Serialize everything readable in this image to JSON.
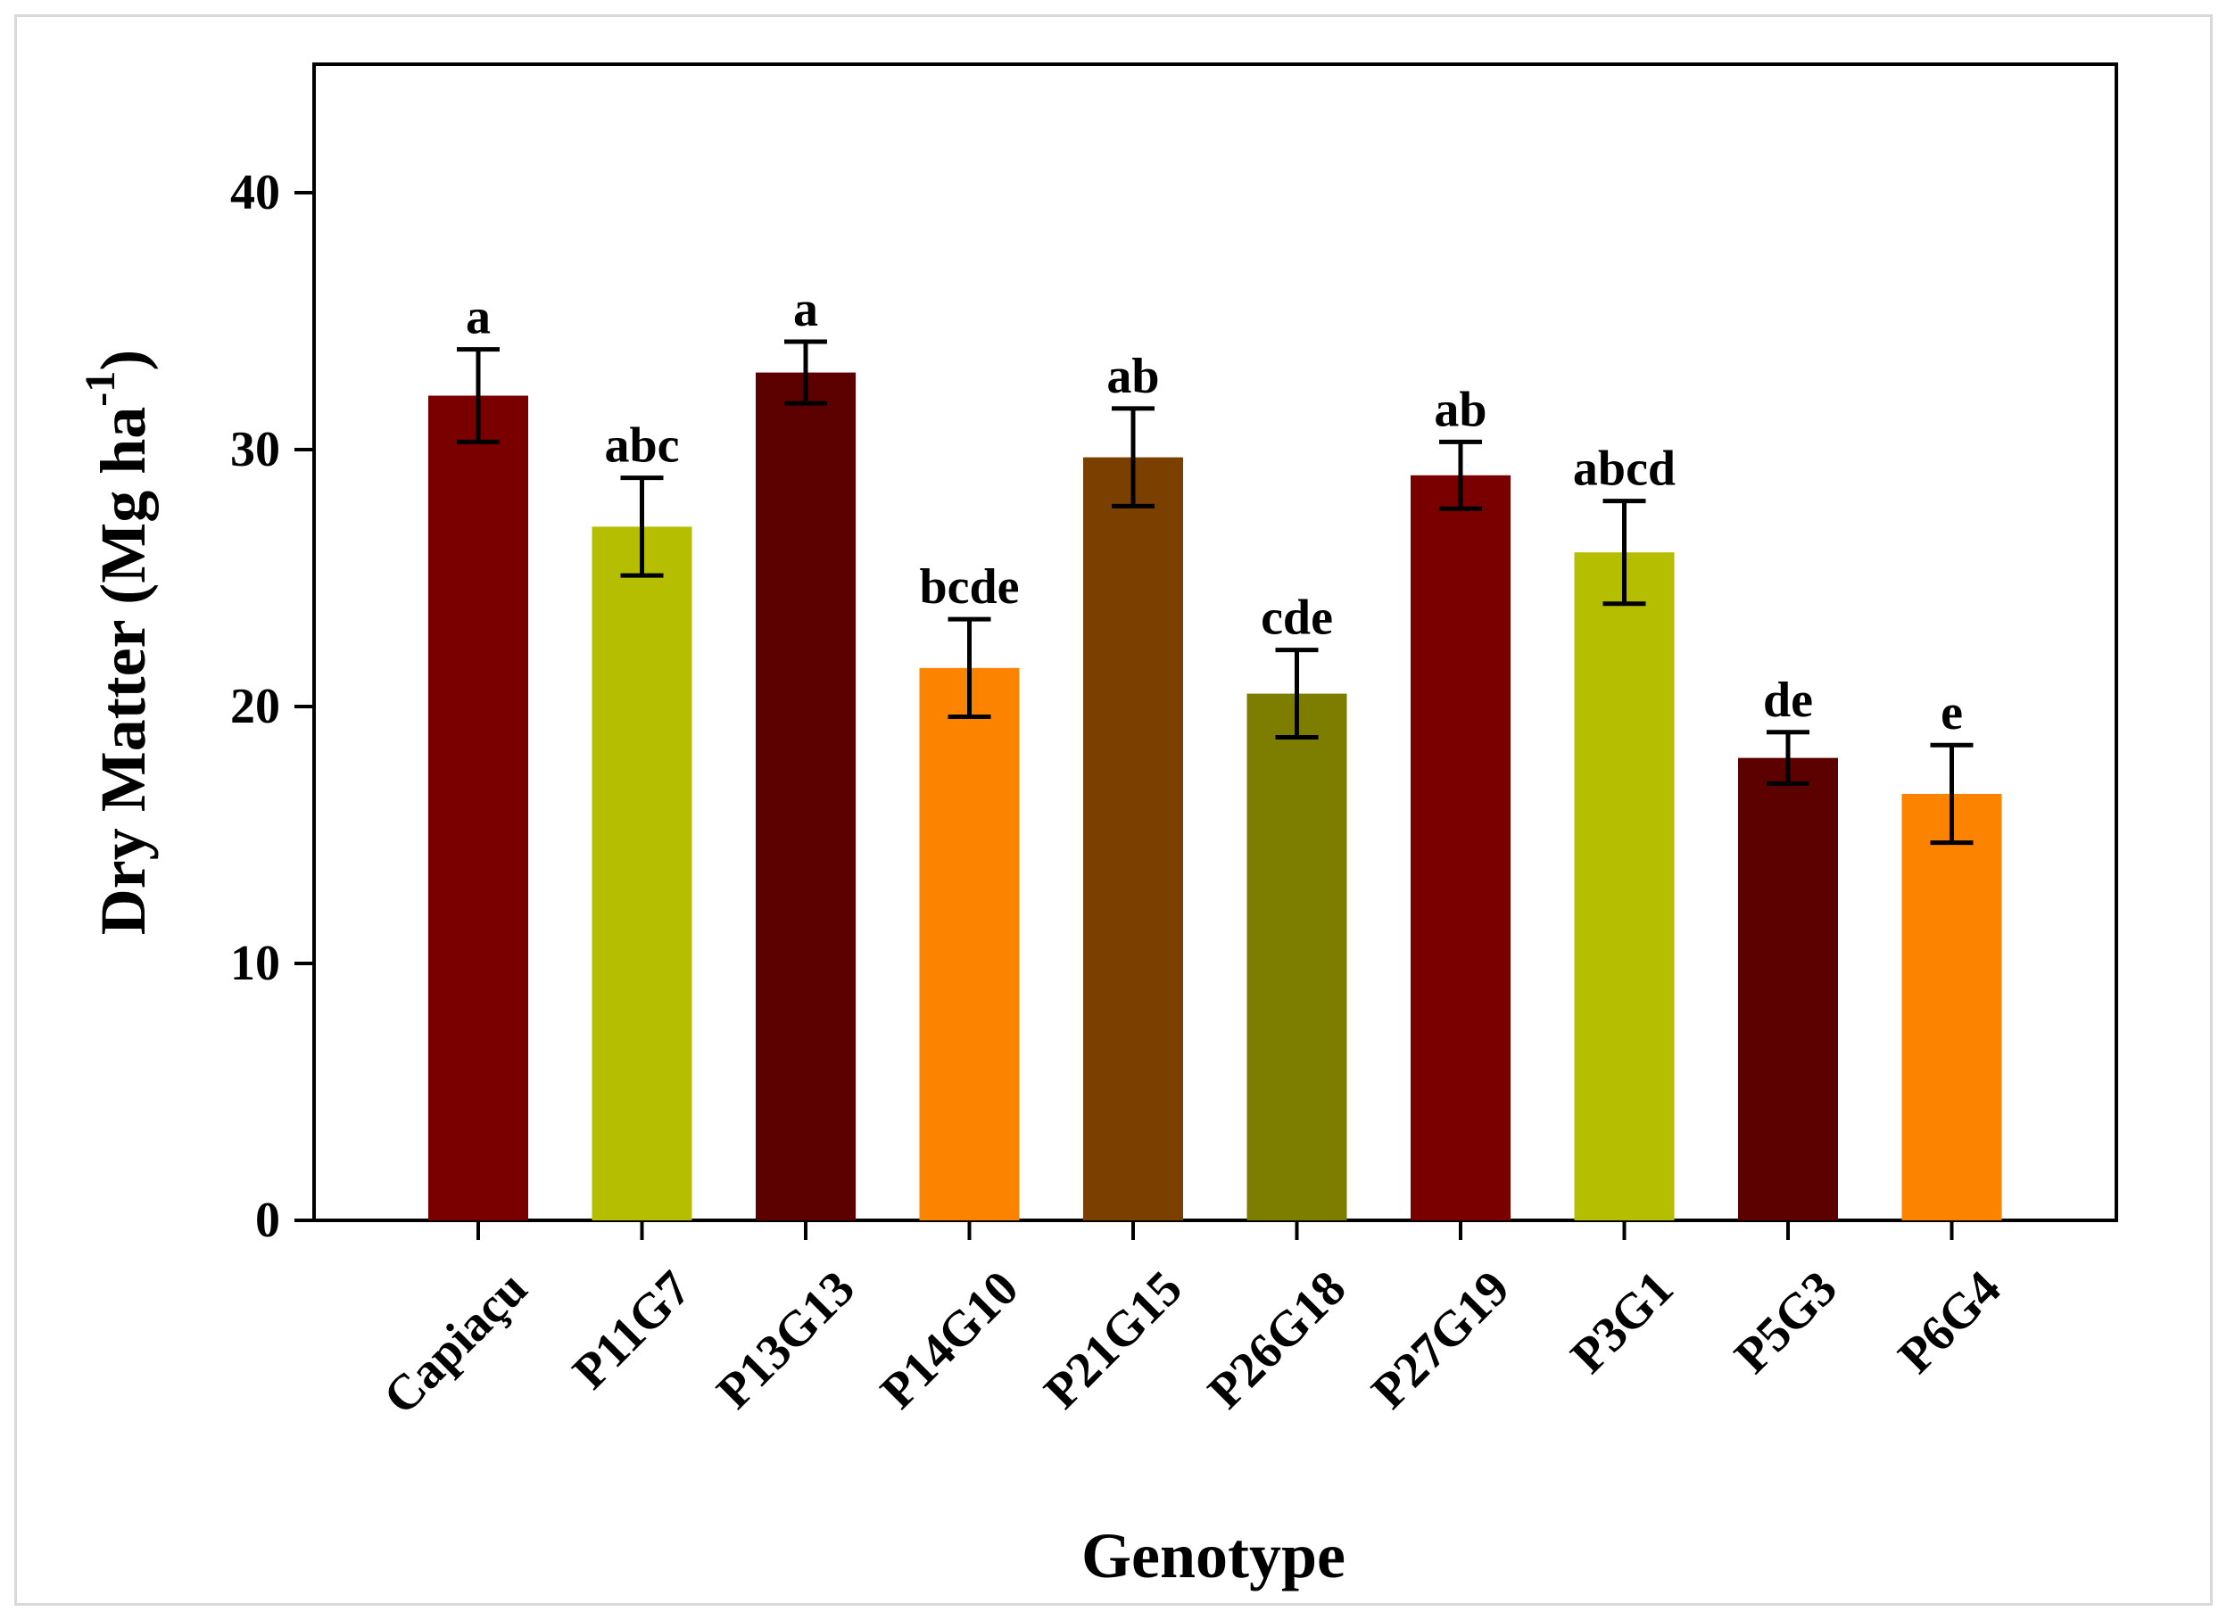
{
  "chart_data": {
    "type": "bar",
    "categories": [
      "Capiaçu",
      "P11G7",
      "P13G13",
      "P14G10",
      "P21G15",
      "P26G18",
      "P27G19",
      "P3G1",
      "P5G3",
      "P6G4"
    ],
    "values": [
      32.1,
      27.0,
      33.0,
      21.5,
      29.7,
      20.5,
      29.0,
      26.0,
      18.0,
      16.6
    ],
    "errors": [
      1.8,
      1.9,
      1.2,
      1.9,
      1.9,
      1.7,
      1.3,
      2.0,
      1.0,
      1.9
    ],
    "letters": [
      "a",
      "abc",
      "a",
      "bcde",
      "ab",
      "cde",
      "ab",
      "abcd",
      "de",
      "e"
    ],
    "colors": [
      "#7a0000",
      "#b5bf00",
      "#5c0000",
      "#fb8300",
      "#7b4000",
      "#7d7d00",
      "#7a0000",
      "#b5bf00",
      "#5c0000",
      "#fb8300"
    ],
    "xlabel": "Genotype",
    "ylabel": "Dry Matter (Mg ha",
    "ylabel_sup": "-1",
    "ylabel_close": ")",
    "ylim": [
      0,
      40
    ],
    "yaxis_max": 45,
    "yticks": [
      0,
      10,
      20,
      30,
      40
    ],
    "grid": false
  }
}
